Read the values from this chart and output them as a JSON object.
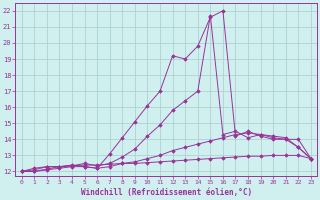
{
  "xlabel": "Windchill (Refroidissement éolien,°C)",
  "bg_color": "#cff0ee",
  "line_color": "#993399",
  "grid_color": "#aacccc",
  "xlim": [
    -0.5,
    23.5
  ],
  "ylim": [
    11.7,
    22.5
  ],
  "xticks": [
    0,
    1,
    2,
    3,
    4,
    5,
    6,
    7,
    8,
    9,
    10,
    11,
    12,
    13,
    14,
    15,
    16,
    17,
    18,
    19,
    20,
    21,
    22,
    23
  ],
  "yticks": [
    12,
    13,
    14,
    15,
    16,
    17,
    18,
    19,
    20,
    21,
    22
  ],
  "line1_x": [
    0,
    1,
    2,
    3,
    4,
    5,
    6,
    7,
    8,
    9,
    10,
    11,
    12,
    13,
    14,
    15,
    16,
    17,
    18,
    19,
    20,
    21,
    22,
    23
  ],
  "line1_y": [
    12.0,
    12.2,
    12.3,
    12.3,
    12.35,
    12.4,
    12.4,
    12.45,
    12.5,
    12.5,
    12.55,
    12.6,
    12.65,
    12.7,
    12.75,
    12.8,
    12.85,
    12.9,
    12.95,
    12.95,
    13.0,
    13.0,
    13.0,
    12.8
  ],
  "line2_x": [
    0,
    1,
    2,
    3,
    4,
    5,
    6,
    7,
    8,
    9,
    10,
    11,
    12,
    13,
    14,
    15,
    16,
    17,
    18,
    19,
    20,
    21,
    22,
    23
  ],
  "line2_y": [
    12.0,
    12.0,
    12.1,
    12.2,
    12.3,
    12.3,
    12.2,
    12.3,
    12.5,
    12.6,
    12.8,
    13.0,
    13.3,
    13.5,
    13.7,
    13.9,
    14.1,
    14.3,
    14.4,
    14.3,
    14.1,
    14.0,
    14.0,
    12.8
  ],
  "line3_x": [
    0,
    1,
    2,
    3,
    4,
    5,
    6,
    7,
    8,
    9,
    10,
    11,
    12,
    13,
    14,
    15,
    16,
    17,
    18,
    19,
    20,
    21,
    22,
    23
  ],
  "line3_y": [
    12.0,
    12.0,
    12.15,
    12.3,
    12.35,
    12.5,
    12.35,
    12.5,
    12.9,
    13.4,
    14.2,
    14.9,
    15.8,
    16.4,
    17.0,
    21.7,
    14.3,
    14.5,
    14.1,
    14.3,
    14.2,
    14.1,
    13.5,
    12.8
  ],
  "line4_x": [
    0,
    1,
    2,
    3,
    4,
    5,
    6,
    7,
    8,
    9,
    10,
    11,
    12,
    13,
    14,
    15,
    16,
    17,
    18,
    19,
    20,
    21,
    22,
    23
  ],
  "line4_y": [
    12.0,
    12.1,
    12.3,
    12.3,
    12.4,
    12.3,
    12.2,
    13.1,
    14.1,
    15.1,
    16.1,
    17.0,
    19.2,
    19.0,
    19.8,
    21.6,
    22.0,
    14.2,
    14.5,
    14.2,
    14.0,
    14.0,
    13.5,
    12.8
  ]
}
